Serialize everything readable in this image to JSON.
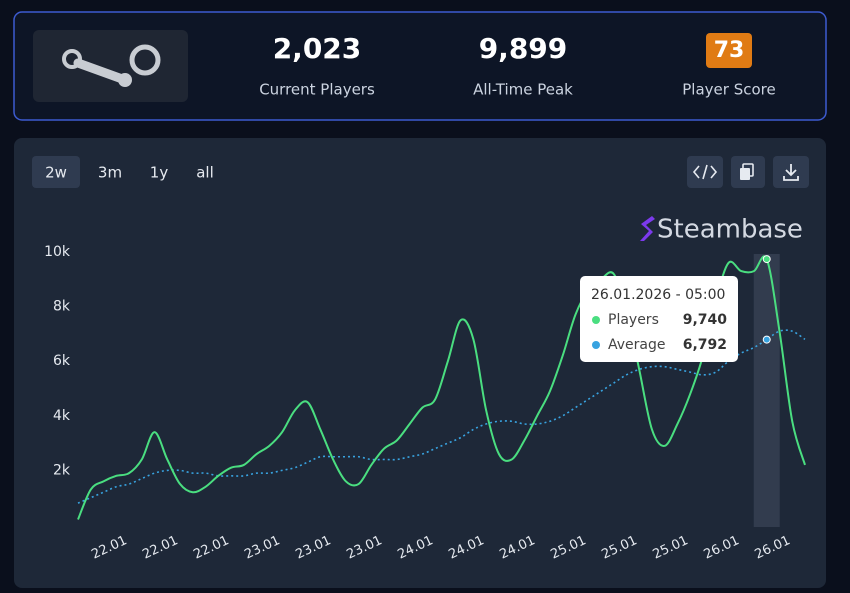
{
  "header": {
    "stats": [
      {
        "value": "2,023",
        "label": "Current Players"
      },
      {
        "value": "9,899",
        "label": "All-Time Peak"
      },
      {
        "value": "73",
        "label": "Player Score"
      }
    ]
  },
  "range_buttons": [
    "2w",
    "3m",
    "1y",
    "all"
  ],
  "watermark": "Steambase",
  "tooltip": {
    "title": "26.01.2026 - 05:00",
    "values": [
      "9,740",
      "6,792"
    ]
  },
  "chart_data": {
    "type": "line",
    "categories": [
      null,
      null,
      null,
      "22.01",
      null,
      null,
      null,
      "22.01",
      null,
      null,
      null,
      "22.01",
      null,
      null,
      null,
      "23.01",
      null,
      null,
      null,
      "23.01",
      null,
      null,
      null,
      "23.01",
      null,
      null,
      null,
      "24.01",
      null,
      null,
      null,
      "24.01",
      null,
      null,
      null,
      "24.01",
      null,
      null,
      null,
      "25.01",
      null,
      null,
      null,
      "25.01",
      null,
      null,
      null,
      "25.01",
      null,
      null,
      null,
      "26.01",
      null,
      null,
      null,
      "26.01",
      null,
      null
    ],
    "series": [
      {
        "name": "Players",
        "color": "#4ade80",
        "values": [
          200,
          1300,
          1600,
          1800,
          1900,
          2400,
          3400,
          2400,
          1500,
          1200,
          1400,
          1800,
          2100,
          2200,
          2600,
          2900,
          3400,
          4200,
          4500,
          3500,
          2400,
          1600,
          1500,
          2200,
          2800,
          3100,
          3700,
          4300,
          4600,
          6000,
          7500,
          6800,
          4200,
          2600,
          2400,
          3100,
          4000,
          4900,
          6200,
          7700,
          8600,
          9000,
          9200,
          7900,
          5700,
          3500,
          2900,
          3700,
          4800,
          6200,
          8200,
          9600,
          9300,
          9300,
          9740,
          7100,
          3800,
          2200
        ]
      },
      {
        "name": "Average",
        "color": "#38a3e0",
        "values": [
          800,
          1000,
          1200,
          1400,
          1500,
          1700,
          1900,
          2000,
          2000,
          1900,
          1900,
          1800,
          1800,
          1800,
          1900,
          1900,
          2000,
          2100,
          2300,
          2500,
          2500,
          2500,
          2500,
          2400,
          2400,
          2400,
          2500,
          2600,
          2800,
          3000,
          3200,
          3500,
          3700,
          3800,
          3800,
          3700,
          3700,
          3800,
          4000,
          4300,
          4600,
          4900,
          5200,
          5500,
          5700,
          5800,
          5800,
          5700,
          5600,
          5500,
          5600,
          6000,
          6300,
          6500,
          6792,
          7100,
          7100,
          6800
        ]
      }
    ],
    "ylim": [
      0,
      10000
    ],
    "yticks": [
      {
        "value": 2000,
        "label": "2k"
      },
      {
        "value": 4000,
        "label": "4k"
      },
      {
        "value": 6000,
        "label": "6k"
      },
      {
        "value": 8000,
        "label": "8k"
      },
      {
        "value": 10000,
        "label": "10k"
      }
    ],
    "grid": false
  }
}
